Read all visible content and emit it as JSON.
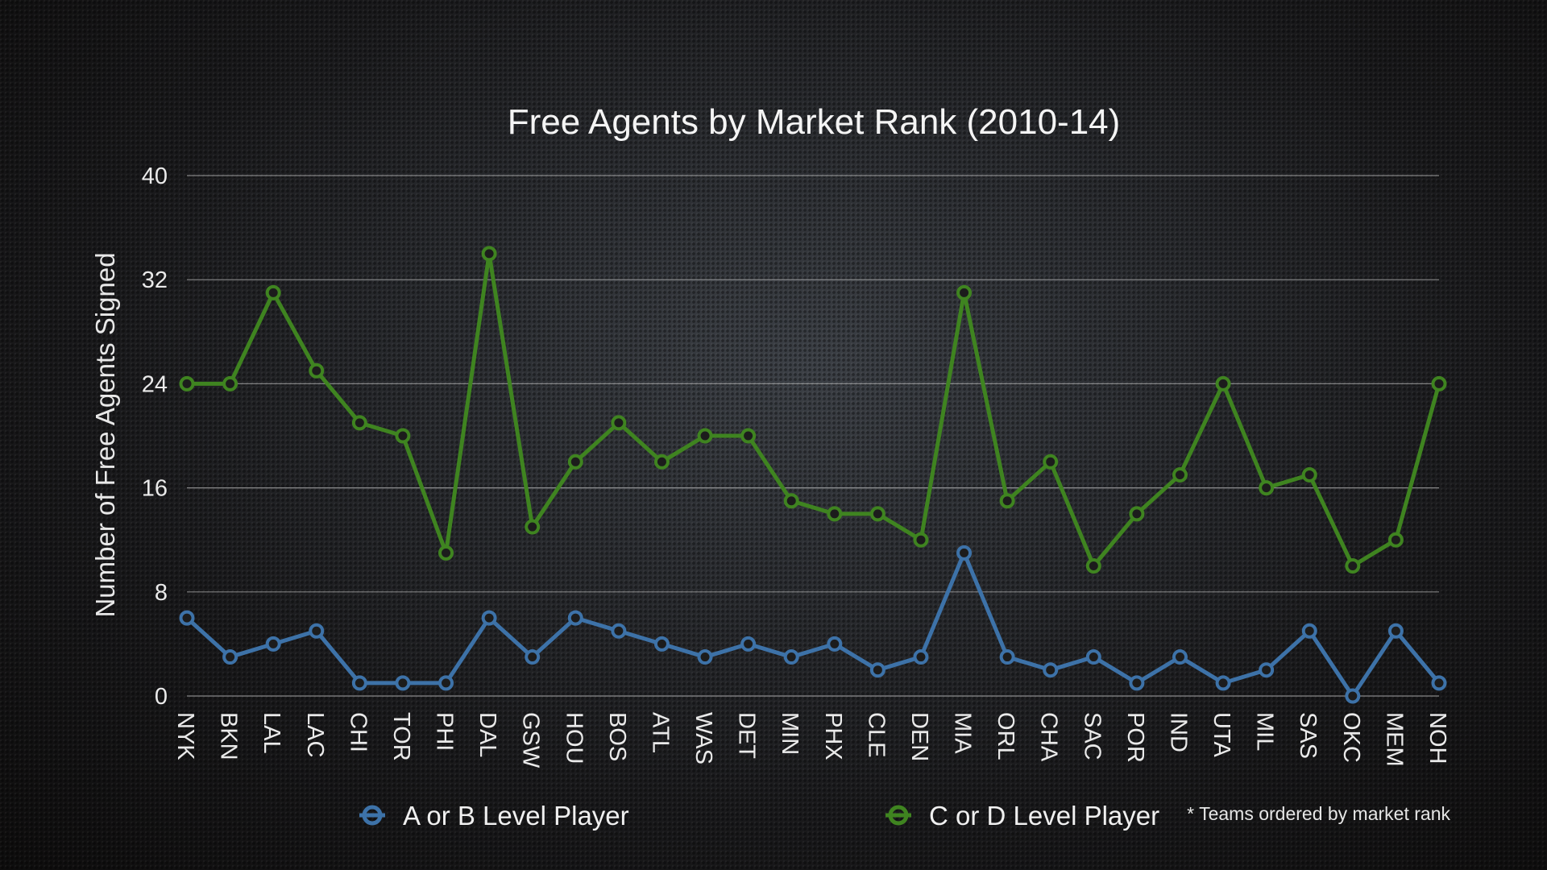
{
  "chart_data": {
    "type": "line",
    "title": "Free Agents by Market Rank (2010-14)",
    "xlabel": "",
    "ylabel": "Number of Free Agents Signed",
    "ylim": [
      0,
      40
    ],
    "yticks": [
      0,
      8,
      16,
      24,
      32,
      40
    ],
    "grid": true,
    "legend_position": "bottom",
    "categories": [
      "NYK",
      "BKN",
      "LAL",
      "LAC",
      "CHI",
      "TOR",
      "PHI",
      "DAL",
      "GSW",
      "HOU",
      "BOS",
      "ATL",
      "WAS",
      "DET",
      "MIN",
      "PHX",
      "CLE",
      "DEN",
      "MIA",
      "ORL",
      "CHA",
      "SAC",
      "POR",
      "IND",
      "UTA",
      "MIL",
      "SAS",
      "OKC",
      "MEM",
      "NOH"
    ],
    "series": [
      {
        "name": "A or B Level Player",
        "color": "#3d72a8",
        "values": [
          6,
          3,
          4,
          5,
          1,
          1,
          1,
          6,
          3,
          6,
          5,
          4,
          3,
          4,
          3,
          4,
          2,
          3,
          11,
          3,
          2,
          3,
          1,
          3,
          1,
          2,
          5,
          0,
          5,
          1
        ]
      },
      {
        "name": "C or D Level Player",
        "color": "#3f8420",
        "values": [
          24,
          24,
          31,
          25,
          21,
          20,
          11,
          34,
          13,
          18,
          21,
          18,
          20,
          20,
          15,
          14,
          14,
          12,
          31,
          15,
          18,
          10,
          14,
          17,
          24,
          16,
          17,
          10,
          12,
          24
        ]
      }
    ],
    "annotations": [
      "* Teams ordered by market rank"
    ]
  }
}
